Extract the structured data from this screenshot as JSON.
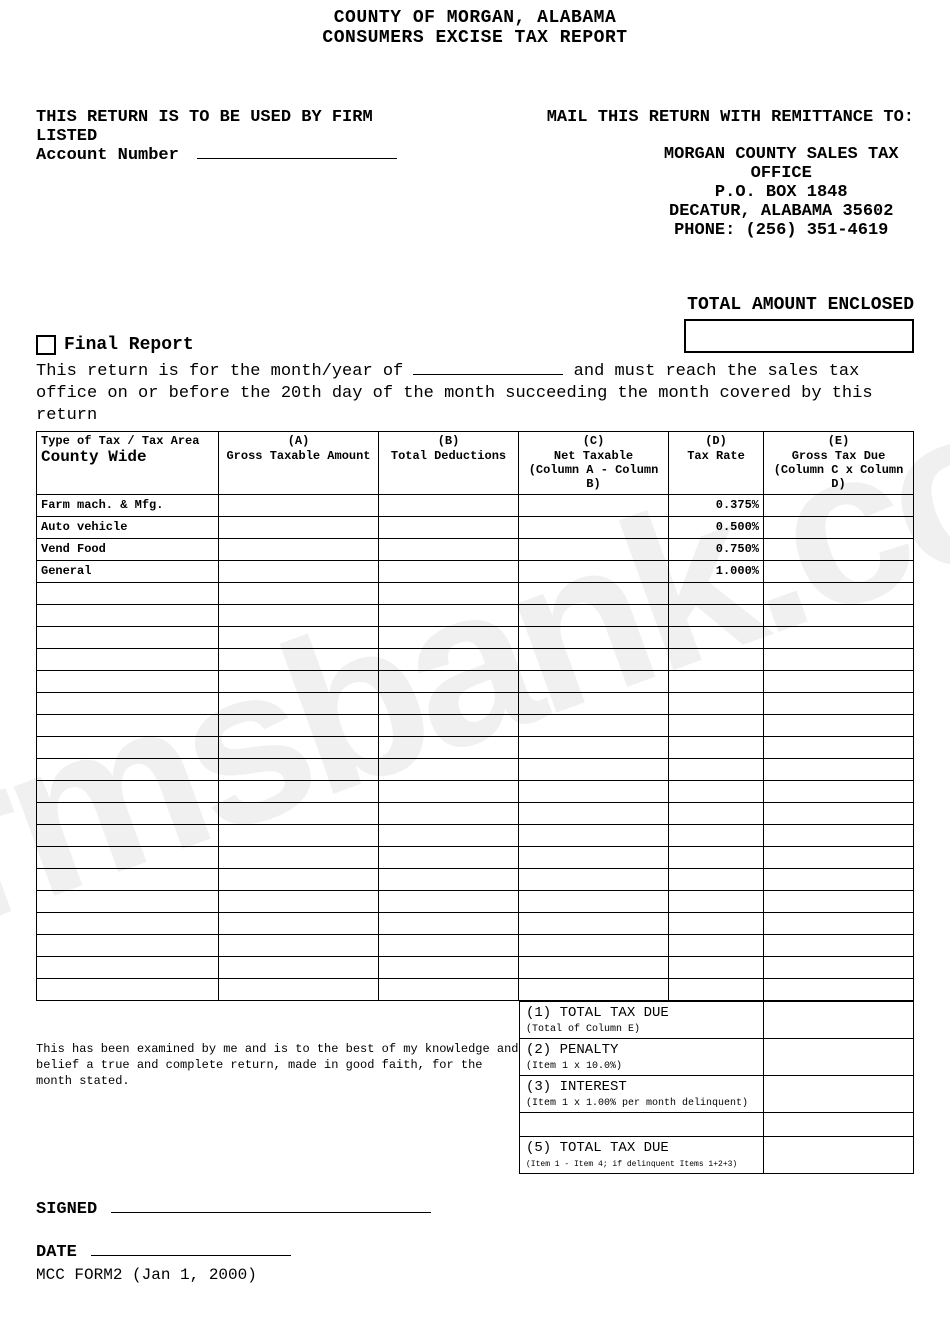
{
  "header": {
    "line1": "COUNTY OF MORGAN, ALABAMA",
    "line2": "CONSUMERS EXCISE TAX REPORT"
  },
  "leftHead": {
    "line1": "THIS RETURN IS TO BE USED BY FIRM LISTED",
    "acctLabel": "Account Number"
  },
  "rightHead": {
    "mailTo": "MAIL THIS RETURN WITH REMITTANCE TO:",
    "addr1": "MORGAN COUNTY SALES TAX OFFICE",
    "addr2": "P.O. BOX 1848",
    "addr3": "DECATUR, ALABAMA 35602",
    "addr4": "PHONE: (256) 351-4619"
  },
  "totalEnclosed": "TOTAL AMOUNT ENCLOSED",
  "finalReport": "Final Report",
  "periodText1": "This return is for the month/year of ",
  "periodText2": " and must reach the sales tax office on or before the 20th day of the month succeeding the month covered by this return",
  "columns": {
    "typeHead": "Type of Tax / Tax Area",
    "countyWide": "County Wide",
    "a": "(A)",
    "aSub": "Gross Taxable Amount",
    "b": "(B)",
    "bSub": "Total Deductions",
    "c": "(C)",
    "cSub": "Net Taxable",
    "cSub2": "(Column A - Column B)",
    "d": "(D)",
    "dSub": "Tax Rate",
    "e": "(E)",
    "eSub": "Gross Tax Due",
    "eSub2": "(Column C x Column D)"
  },
  "rows": [
    {
      "type": "Farm mach. & Mfg.",
      "rate": "0.375%"
    },
    {
      "type": "Auto vehicle",
      "rate": "0.500%"
    },
    {
      "type": "Vend Food",
      "rate": "0.750%"
    },
    {
      "type": "General",
      "rate": "1.000%"
    }
  ],
  "emptyRowCount": 19,
  "summary": {
    "r1": "(1) TOTAL TAX DUE",
    "r1sub": "(Total of Column E)",
    "r2": "(2) PENALTY",
    "r2sub": "(Item 1 x 10.0%)",
    "r3": "(3) INTEREST",
    "r3sub": "(Item 1 x 1.00% per month delinquent)",
    "r5": "(5) TOTAL TAX DUE",
    "r5sub": "(Item 1 - Item 4; if delinquent Items 1+2+3)"
  },
  "attest": "This has been examined by me and is to the best of my knowledge and belief a true and complete return, made in good faith, for the month stated.",
  "signed": "SIGNED",
  "date": "DATE",
  "formId": "MCC FORM2 (Jan 1, 2000)",
  "watermark": "formsbank.com",
  "colors": {
    "text": "#000000",
    "bg": "#ffffff",
    "wm": "rgba(0,0,0,0.06)"
  }
}
